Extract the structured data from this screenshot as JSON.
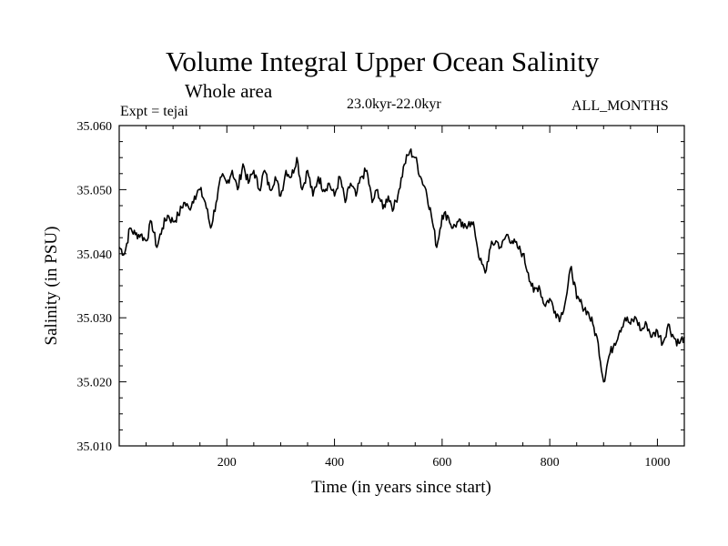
{
  "chart_data": {
    "type": "line",
    "title": "Volume Integral Upper Ocean Salinity",
    "subtitle": "Whole area",
    "experiment_label": "Expt = tejai",
    "period_label": "23.0kyr-22.0kyr",
    "months_label": "ALL_MONTHS",
    "xlabel": "Time (in years since start)",
    "ylabel": "Salinity (in PSU)",
    "xlim": [
      0,
      1050
    ],
    "ylim": [
      35.01,
      35.06
    ],
    "xticks": [
      200,
      400,
      600,
      800,
      1000
    ],
    "xtick_labels": [
      "200",
      "400",
      "600",
      "800",
      "1000"
    ],
    "yticks": [
      35.01,
      35.02,
      35.03,
      35.04,
      35.05,
      35.06
    ],
    "ytick_labels": [
      "35.010",
      "35.020",
      "35.030",
      "35.040",
      "35.050",
      "35.060"
    ],
    "grid": false,
    "series": [
      {
        "name": "salinity",
        "color": "#000000",
        "x": [
          0,
          10,
          20,
          30,
          40,
          50,
          60,
          70,
          80,
          90,
          100,
          110,
          120,
          130,
          140,
          150,
          160,
          170,
          180,
          190,
          200,
          210,
          220,
          230,
          240,
          250,
          260,
          270,
          280,
          290,
          300,
          310,
          320,
          330,
          340,
          350,
          360,
          370,
          380,
          390,
          400,
          410,
          420,
          430,
          440,
          450,
          460,
          470,
          480,
          490,
          500,
          510,
          520,
          530,
          540,
          550,
          560,
          570,
          580,
          590,
          600,
          610,
          620,
          630,
          640,
          650,
          660,
          670,
          680,
          690,
          700,
          710,
          720,
          730,
          740,
          750,
          760,
          770,
          780,
          790,
          800,
          810,
          820,
          830,
          840,
          850,
          860,
          870,
          880,
          890,
          900,
          910,
          920,
          930,
          940,
          950,
          960,
          970,
          980,
          990,
          1000,
          1010,
          1020,
          1030,
          1040,
          1050
        ],
        "values": [
          35.041,
          35.04,
          35.044,
          35.043,
          35.043,
          35.042,
          35.045,
          35.041,
          35.044,
          35.046,
          35.045,
          35.046,
          35.048,
          35.047,
          35.049,
          35.05,
          35.048,
          35.044,
          35.048,
          35.052,
          35.051,
          35.053,
          35.05,
          35.054,
          35.051,
          35.053,
          35.05,
          35.053,
          35.05,
          35.052,
          35.049,
          35.053,
          35.052,
          35.055,
          35.05,
          35.053,
          35.049,
          35.052,
          35.05,
          35.051,
          35.049,
          35.052,
          35.048,
          35.051,
          35.049,
          35.052,
          35.053,
          35.048,
          35.05,
          35.047,
          35.049,
          35.047,
          35.05,
          35.054,
          35.056,
          35.055,
          35.052,
          35.05,
          35.046,
          35.041,
          35.046,
          35.046,
          35.044,
          35.045,
          35.044,
          35.045,
          35.044,
          35.039,
          35.037,
          35.041,
          35.042,
          35.041,
          35.043,
          35.042,
          35.041,
          35.04,
          35.037,
          35.034,
          35.035,
          35.032,
          35.033,
          35.031,
          35.03,
          35.033,
          35.038,
          35.033,
          35.032,
          35.031,
          35.029,
          35.026,
          35.02,
          35.024,
          35.026,
          35.028,
          35.03,
          35.029,
          35.03,
          35.028,
          35.029,
          35.027,
          35.028,
          35.026,
          35.029,
          35.027,
          35.026,
          35.027
        ]
      }
    ]
  }
}
